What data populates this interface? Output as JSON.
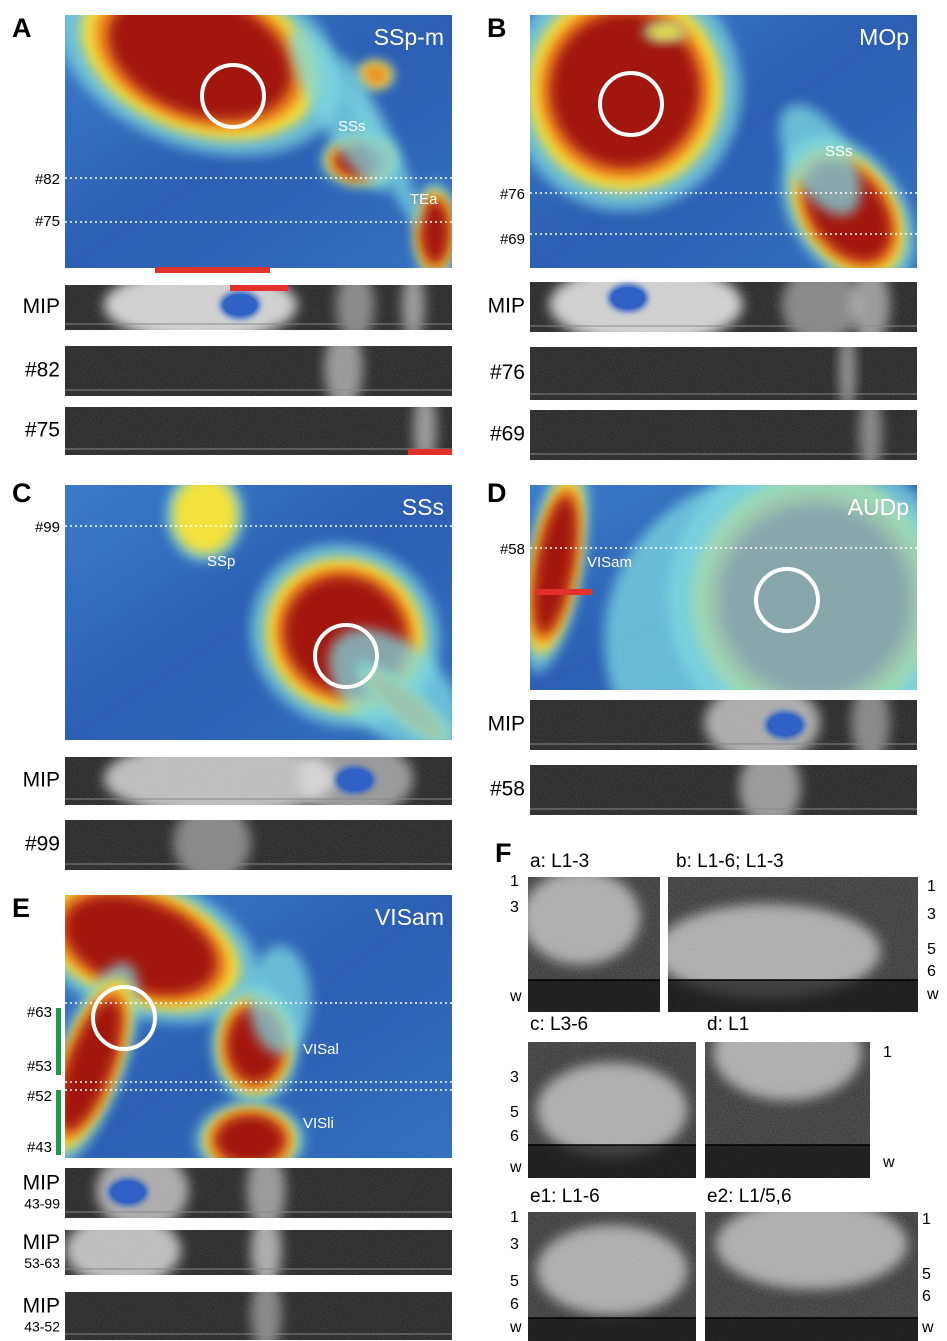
{
  "panels": [
    {
      "letter": "A",
      "title": "SSp-m",
      "regions": [
        "SSs",
        "TEa"
      ],
      "lines": [
        "#82",
        "#75"
      ],
      "strips": [
        {
          "label": "MIP"
        },
        {
          "label": "#82"
        },
        {
          "label": "#75"
        }
      ]
    },
    {
      "letter": "B",
      "title": "MOp",
      "regions": [
        "SSs"
      ],
      "lines": [
        "#76",
        "#69"
      ],
      "strips": [
        {
          "label": "MIP"
        },
        {
          "label": "#76"
        },
        {
          "label": "#69"
        }
      ]
    },
    {
      "letter": "C",
      "title": "SSs",
      "regions": [
        "SSp"
      ],
      "lines": [
        "#99"
      ],
      "strips": [
        {
          "label": "MIP"
        },
        {
          "label": "#99"
        }
      ]
    },
    {
      "letter": "D",
      "title": "AUDp",
      "regions": [
        "VISam"
      ],
      "lines": [
        "#58"
      ],
      "strips": [
        {
          "label": "MIP"
        },
        {
          "label": "#58"
        }
      ]
    },
    {
      "letter": "E",
      "title": "VISam",
      "regions": [
        "VISal",
        "VISli"
      ],
      "lines": [
        "#63",
        "#53",
        "#52",
        "#43"
      ],
      "strips": [
        {
          "label": "MIP",
          "sublabel": "43-99"
        },
        {
          "label": "MIP",
          "sublabel": "53-63"
        },
        {
          "label": "MIP",
          "sublabel": "43-52"
        }
      ]
    }
  ],
  "F": {
    "letter": "F",
    "subpanels": [
      {
        "title": "a: L1-3",
        "layers": [
          "1",
          "3",
          "w"
        ]
      },
      {
        "title": "b: L1-6; L1-3",
        "layers": [
          "1",
          "3",
          "5",
          "6",
          "w"
        ]
      },
      {
        "title": "c: L3-6",
        "layers": [
          "3",
          "5",
          "6",
          "w"
        ]
      },
      {
        "title": "d: L1",
        "layers": [
          "1",
          "w"
        ]
      },
      {
        "title": "e1: L1-6",
        "layers": [
          "1",
          "3",
          "5",
          "6",
          "w"
        ]
      },
      {
        "title": "e2: L1/5,6",
        "layers": [
          "1",
          "5",
          "6",
          "w"
        ]
      }
    ]
  }
}
